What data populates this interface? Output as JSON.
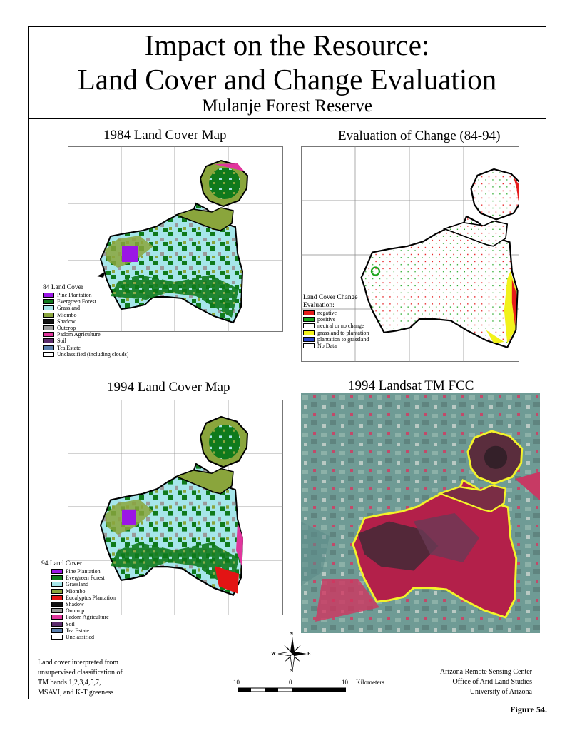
{
  "header": {
    "title_line1": "Impact on the Resource:",
    "title_line2": "Land Cover and Change Evaluation",
    "subtitle": "Mulanje Forest Reserve"
  },
  "panels": {
    "map1984": {
      "title": "1984 Land Cover Map"
    },
    "change": {
      "title": "Evaluation of Change (84-94)"
    },
    "map1994": {
      "title": "1994 Land Cover Map"
    },
    "landsat": {
      "title": "1994 Landsat TM FCC"
    }
  },
  "legend84": {
    "title": "84 Land Cover",
    "items": [
      {
        "label": "Pine Plantation",
        "color": "#9b16e6"
      },
      {
        "label": "Evergreen Forest",
        "color": "#0f7a1c"
      },
      {
        "label": "Grassland",
        "color": "#a6e6ea"
      },
      {
        "label": "Miombo",
        "color": "#8aa53c"
      },
      {
        "label": "Shadow",
        "color": "#111111"
      },
      {
        "label": "Outcrop",
        "color": "#9a9a9a"
      },
      {
        "label": "Padom Agriculture",
        "color": "#e1359d"
      },
      {
        "label": "Soil",
        "color": "#5a2a6b"
      },
      {
        "label": "Tea Estate",
        "color": "#5a7fae"
      },
      {
        "label": "Unclassified (including clouds)",
        "color": "#ffffff"
      }
    ]
  },
  "legend_change": {
    "title": "Land Cover Change Evaluation:",
    "items": [
      {
        "label": "negative",
        "color": "#e51b1b"
      },
      {
        "label": "positive",
        "color": "#1aa31a"
      },
      {
        "label": "neutral or no change",
        "color": "#ffffff"
      },
      {
        "label": "grassland to plantation",
        "color": "#f2f21a"
      },
      {
        "label": "plantation to grassland",
        "color": "#2a45c8"
      },
      {
        "label": "No Data",
        "color": "#ffffff"
      }
    ]
  },
  "legend94": {
    "title": "94 Land Cover",
    "items": [
      {
        "label": "Pine Plantation",
        "color": "#9b16e6"
      },
      {
        "label": "Evergreen Forest",
        "color": "#0f7a1c"
      },
      {
        "label": "Grassland",
        "color": "#a6e6ea"
      },
      {
        "label": "Miombo",
        "color": "#8aa53c"
      },
      {
        "label": "Eucalyptus Plantation",
        "color": "#e31414"
      },
      {
        "label": "Shadow",
        "color": "#111111"
      },
      {
        "label": "Outcrop",
        "color": "#9a9a9a"
      },
      {
        "label": "Padom Agriculture",
        "color": "#e1359d"
      },
      {
        "label": "Soil",
        "color": "#5a2a6b"
      },
      {
        "label": "Tea Estate",
        "color": "#5a7fae"
      },
      {
        "label": "Unclassified",
        "color": "#ffffff"
      }
    ]
  },
  "footer": {
    "note_line1": "Land cover interpreted from",
    "note_line2": "unsupervised classification of",
    "note_line3": "TM bands 1,2,3,4,5,7,",
    "note_line4": "MSAVI, and K-T greeness",
    "scale_left": "10",
    "scale_mid": "0",
    "scale_right": "10",
    "scale_unit": "Kilometers",
    "compass_n": "N",
    "compass_s": "S",
    "compass_e": "E",
    "compass_w": "W",
    "credit_line1": "Arizona Remote Sensing Center",
    "credit_line2": "Office of Arid Land Studies",
    "credit_line3": "University of Arizona",
    "figure_label": "Figure 54."
  }
}
